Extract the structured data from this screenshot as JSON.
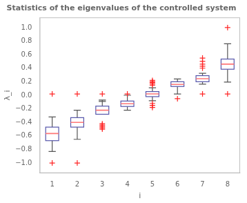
{
  "chart_data": {
    "type": "box",
    "title": "Statistics of the eigenvalues of the controlled system",
    "xlabel": "i",
    "ylabel": "λ_i",
    "xlim": [
      0.5,
      8.5
    ],
    "ylim": [
      -1.15,
      1.15
    ],
    "xticks": [
      1,
      2,
      3,
      4,
      5,
      6,
      7,
      8
    ],
    "yticks": [
      {
        "value": -1.0,
        "label": "−1.0"
      },
      {
        "value": -0.8,
        "label": "−0.8"
      },
      {
        "value": -0.6,
        "label": "−0.6"
      },
      {
        "value": -0.4,
        "label": "−0.4"
      },
      {
        "value": -0.2,
        "label": "−0.2"
      },
      {
        "value": 0.0,
        "label": "0.0"
      },
      {
        "value": 0.2,
        "label": "0.2"
      },
      {
        "value": 0.4,
        "label": "0.4"
      },
      {
        "value": 0.6,
        "label": "0.6"
      },
      {
        "value": 0.8,
        "label": "0.8"
      },
      {
        "value": 1.0,
        "label": "1.0"
      }
    ],
    "grid": false,
    "color": "#5555aa",
    "median_color": "#ff7777",
    "whisker_color": "#555555",
    "outlier_color": "#ff2222",
    "marker": "cross",
    "boxes": [
      {
        "x": 1,
        "q1": -0.67,
        "median": -0.565,
        "q3": -0.47,
        "whisker_low": -0.83,
        "whisker_high": -0.32,
        "outliers": [
          -1.0,
          0.02
        ]
      },
      {
        "x": 2,
        "q1": -0.47,
        "median": -0.4,
        "q3": -0.33,
        "whisker_low": -0.65,
        "whisker_high": -0.22,
        "outliers": [
          -1.0,
          0.02
        ]
      },
      {
        "x": 3,
        "q1": -0.28,
        "median": -0.22,
        "q3": -0.16,
        "whisker_low": -0.09,
        "whisker_high": -0.07,
        "outliers": [
          0.02,
          -0.42,
          -0.44,
          -0.46,
          -0.48,
          -0.5
        ]
      },
      {
        "x": 4,
        "q1": -0.165,
        "median": -0.125,
        "q3": -0.085,
        "whisker_low": -0.22,
        "whisker_high": 0.0,
        "outliers": [
          0.02
        ]
      },
      {
        "x": 5,
        "q1": -0.02,
        "median": 0.02,
        "q3": 0.055,
        "whisker_low": -0.08,
        "whisker_high": 0.11,
        "outliers": [
          -0.15,
          -0.18,
          -0.12,
          0.17,
          0.2,
          0.22,
          0.15,
          0.19
        ]
      },
      {
        "x": 6,
        "q1": 0.13,
        "median": 0.16,
        "q3": 0.2,
        "whisker_low": 0.02,
        "whisker_high": 0.24,
        "outliers": [
          -0.05
        ]
      },
      {
        "x": 7,
        "q1": 0.2,
        "median": 0.245,
        "q3": 0.29,
        "whisker_low": 0.165,
        "whisker_high": 0.325,
        "outliers": [
          0.02,
          0.4,
          0.43,
          0.46,
          0.5,
          0.55
        ]
      },
      {
        "x": 8,
        "q1": 0.385,
        "median": 0.46,
        "q3": 0.535,
        "whisker_low": 0.195,
        "whisker_high": 0.76,
        "outliers": [
          0.02,
          1.0
        ]
      }
    ]
  }
}
